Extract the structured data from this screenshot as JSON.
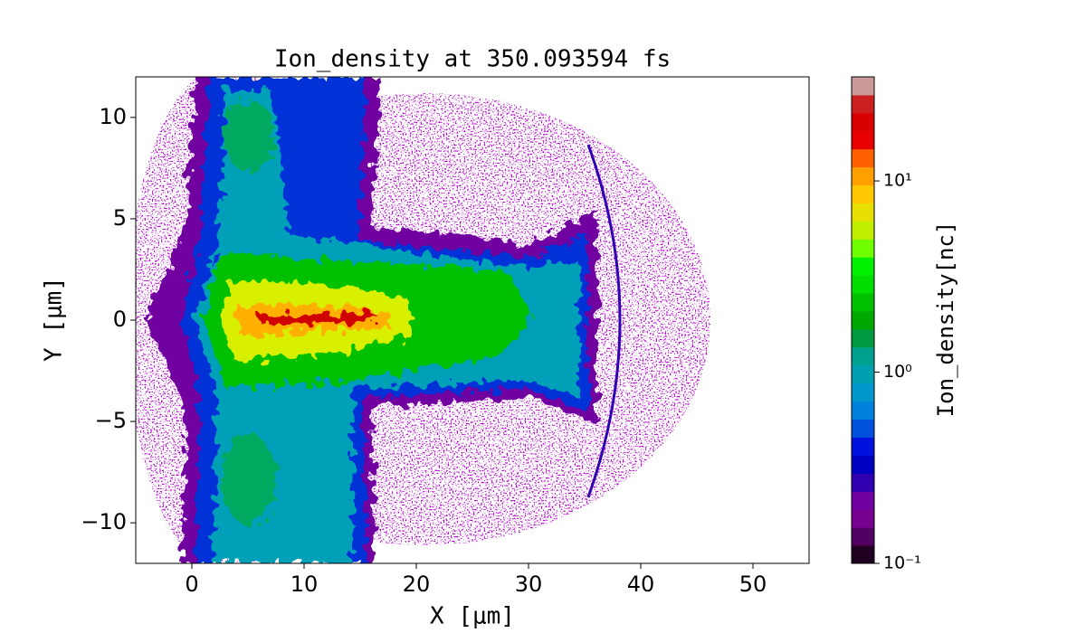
{
  "chart_data": {
    "type": "heatmap",
    "title": "Ion_density at 350.093594 fs",
    "xlabel": "X [μm]",
    "ylabel": "Y [μm]",
    "xlim": [
      -5,
      55
    ],
    "ylim": [
      -12,
      12
    ],
    "xticks": [
      0,
      10,
      20,
      30,
      40,
      50
    ],
    "yticks": [
      {
        "value": -10,
        "label": "−10"
      },
      {
        "value": -5,
        "label": "−5"
      },
      0,
      5,
      10
    ],
    "colorbar": {
      "label": "Ion_density[nc]",
      "scale": "log",
      "lim": [
        0.1,
        35
      ],
      "ticks": [
        {
          "value": 0.1,
          "label": "10⁻¹"
        },
        {
          "value": 1,
          "label": "10⁰"
        },
        {
          "value": 10,
          "label": "10¹"
        }
      ],
      "colors": [
        "#200020",
        "#500060",
        "#780090",
        "#7000a0",
        "#3000b0",
        "#0000c0",
        "#0010dd",
        "#0050dd",
        "#0080dd",
        "#0098cc",
        "#00a0b0",
        "#00a090",
        "#009a40",
        "#00a800",
        "#00c000",
        "#00dd00",
        "#00f000",
        "#70ff00",
        "#c0f000",
        "#e8e000",
        "#ffc800",
        "#ffa000",
        "#ff6000",
        "#e80000",
        "#d80000",
        "#cc2020",
        "#cc9999"
      ]
    }
  }
}
